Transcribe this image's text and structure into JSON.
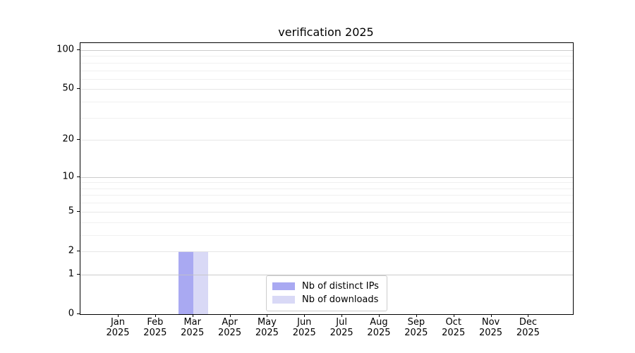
{
  "title": "verification 2025",
  "chart_data": {
    "type": "bar",
    "title": "verification 2025",
    "categories": [
      "Jan 2025",
      "Feb 2025",
      "Mar 2025",
      "Apr 2025",
      "May 2025",
      "Jun 2025",
      "Jul 2025",
      "Aug 2025",
      "Sep 2025",
      "Oct 2025",
      "Nov 2025",
      "Dec 2025"
    ],
    "series": [
      {
        "name": "Nb of distinct IPs",
        "color": "#a9a9f2",
        "values": [
          0,
          0,
          2,
          0,
          0,
          0,
          0,
          0,
          0,
          0,
          0,
          0
        ]
      },
      {
        "name": "Nb of downloads",
        "color": "#d9d9f6",
        "values": [
          0,
          0,
          2,
          0,
          0,
          0,
          0,
          0,
          0,
          0,
          0,
          0
        ]
      }
    ],
    "xlabel": "",
    "ylabel": "",
    "y_scale": "log1p",
    "ylim": [
      0,
      101
    ],
    "y_ticks": [
      0,
      1,
      2,
      5,
      10,
      20,
      50,
      100
    ],
    "y_major_gridlines": [
      1,
      10,
      100
    ],
    "y_mid_gridlines": [
      2,
      5,
      20,
      50
    ],
    "y_minor_gridlines": [
      3,
      4,
      6,
      7,
      8,
      9,
      30,
      40,
      60,
      70,
      80,
      90
    ],
    "grid": true,
    "legend_position": "lower center"
  },
  "legend": {
    "items": [
      {
        "label": "Nb of distinct IPs",
        "color": "#a9a9f2"
      },
      {
        "label": "Nb of downloads",
        "color": "#d9d9f6"
      }
    ]
  },
  "colors": {
    "axis": "#000000",
    "grid_major": "#c3c3c3",
    "grid_mid": "#e2e2e2",
    "grid_minor": "#ededed",
    "background": "#ffffff"
  }
}
